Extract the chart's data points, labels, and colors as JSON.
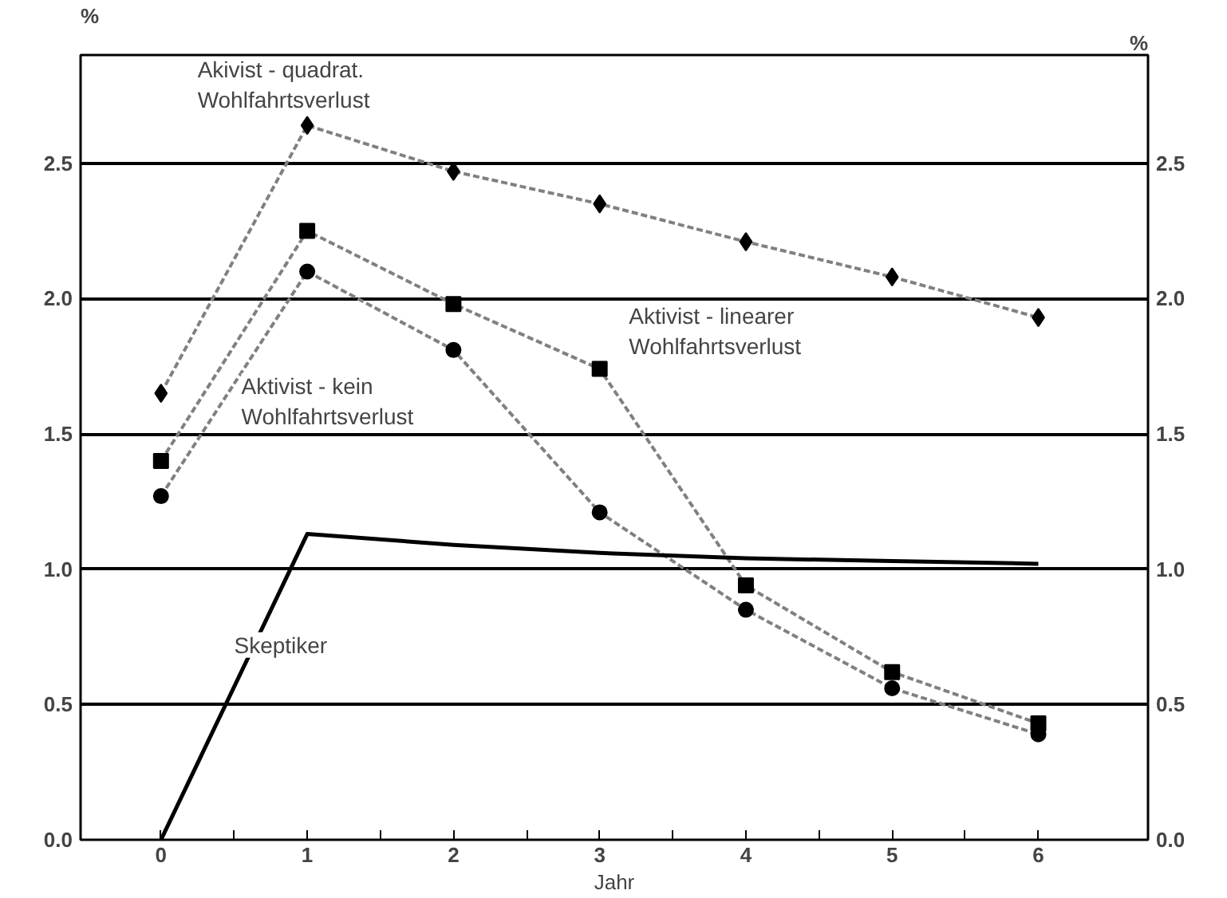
{
  "chart_data": {
    "type": "line",
    "xlabel": "Jahr",
    "ylabel": "%",
    "y2label": "%",
    "x": [
      0,
      1,
      2,
      3,
      4,
      5,
      6
    ],
    "series": [
      {
        "name": "Akivist - quadrat.\nWohlfahrtsverlust",
        "color": "#808080",
        "marker": "diamond",
        "line_style": "dashed",
        "values": [
          1.65,
          2.64,
          2.47,
          2.35,
          2.21,
          2.08,
          1.93
        ]
      },
      {
        "name": "Aktivist - linearer\nWohlfahrtsverlust",
        "color": "#808080",
        "marker": "square",
        "line_style": "dashed",
        "values": [
          1.4,
          2.25,
          1.98,
          1.74,
          0.94,
          0.62,
          0.43
        ]
      },
      {
        "name": "Aktivist - kein\nWohlfahrtsverlust",
        "color": "#808080",
        "marker": "circle",
        "line_style": "dashed",
        "values": [
          1.27,
          2.1,
          1.81,
          1.21,
          0.85,
          0.56,
          0.39
        ]
      },
      {
        "name": "Skeptiker",
        "color": "#000000",
        "marker": "none",
        "line_style": "solid",
        "values": [
          0,
          1.13,
          1.09,
          1.06,
          1.04,
          1.03,
          1.02
        ]
      }
    ],
    "xlim": [
      -0.55,
      6.75
    ],
    "xticks": [
      0,
      {
        "value": 0.5,
        "label": null
      },
      1,
      {
        "value": 1.5,
        "label": null
      },
      2,
      {
        "value": 2.5,
        "label": null
      },
      3,
      {
        "value": 3.5,
        "label": null
      },
      4,
      {
        "value": 4.5,
        "label": null
      },
      5,
      {
        "value": 5.5,
        "label": null
      },
      6
    ],
    "ylim": [
      0,
      2.9
    ],
    "yticks": [
      {
        "value": 0,
        "label": "0.0"
      },
      {
        "value": 0.5,
        "label": "0.5"
      },
      {
        "value": 1,
        "label": "1.0"
      },
      {
        "value": 1.5,
        "label": "1.5"
      },
      {
        "value": 2,
        "label": "2.0"
      },
      {
        "value": 2.5,
        "label": "2.5"
      }
    ],
    "y2lim": [
      0,
      2.9
    ],
    "y2ticks": [
      {
        "value": 0,
        "label": "0.0"
      },
      {
        "value": 0.5,
        "label": "0.5"
      },
      {
        "value": 1,
        "label": "1.0"
      },
      {
        "value": 1.5,
        "label": "1.5"
      },
      {
        "value": 2,
        "label": "2.0"
      },
      {
        "value": 2.5,
        "label": "2.5"
      }
    ],
    "grid": "y"
  }
}
